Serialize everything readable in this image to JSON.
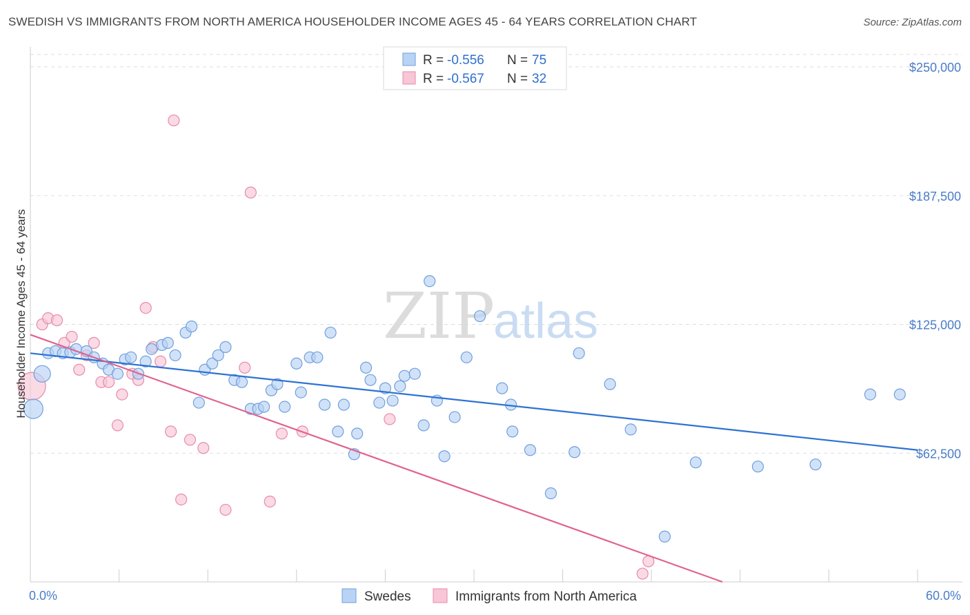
{
  "header": {
    "title": "SWEDISH VS IMMIGRANTS FROM NORTH AMERICA HOUSEHOLDER INCOME AGES 45 - 64 YEARS CORRELATION CHART",
    "source": "Source: ZipAtlas.com"
  },
  "watermark": {
    "zip": "ZIP",
    "atlas": "atlas"
  },
  "colors": {
    "swedes_fill": "#b9d3f5",
    "swedes_stroke": "#6f9fdc",
    "swedes_line": "#2d72d2",
    "imm_fill": "#f8c6d6",
    "imm_stroke": "#e88aaa",
    "imm_line": "#e0628e",
    "grid": "#dddddd",
    "axis_label": "#4a7cc9"
  },
  "legend": {
    "rows": [
      {
        "r_label": "R = ",
        "r_value": "-0.556",
        "n_label": "N = ",
        "n_value": "75"
      },
      {
        "r_label": "R = ",
        "r_value": "-0.567",
        "n_label": "N = ",
        "n_value": "32"
      }
    ]
  },
  "chart_data": {
    "type": "scatter",
    "title": "SWEDISH VS IMMIGRANTS FROM NORTH AMERICA HOUSEHOLDER INCOME AGES 45 - 64 YEARS CORRELATION CHART",
    "xlabel": "",
    "ylabel": "Householder Income Ages 45 - 64 years",
    "xlim": [
      0,
      60
    ],
    "ylim": [
      0,
      250000
    ],
    "x_tick_labels": [
      "0.0%",
      "60.0%"
    ],
    "y_ticks": [
      62500,
      125000,
      187500,
      250000
    ],
    "y_tick_labels": [
      "$62,500",
      "$125,000",
      "$187,500",
      "$250,000"
    ],
    "grid": true,
    "legend_position": "top-center",
    "series": [
      {
        "name": "Swedes",
        "trend": {
          "x": [
            0,
            60
          ],
          "y": [
            111000,
            64000
          ]
        },
        "points": [
          {
            "x": 0.2,
            "y": 84000,
            "s": 14
          },
          {
            "x": 0.8,
            "y": 101000,
            "s": 12
          },
          {
            "x": 1.2,
            "y": 111000
          },
          {
            "x": 1.7,
            "y": 112000
          },
          {
            "x": 2.2,
            "y": 111000
          },
          {
            "x": 2.7,
            "y": 111500
          },
          {
            "x": 3.1,
            "y": 113000
          },
          {
            "x": 3.8,
            "y": 112000
          },
          {
            "x": 4.3,
            "y": 109000
          },
          {
            "x": 4.9,
            "y": 106000
          },
          {
            "x": 5.3,
            "y": 103000
          },
          {
            "x": 5.9,
            "y": 101000
          },
          {
            "x": 6.4,
            "y": 108000
          },
          {
            "x": 6.8,
            "y": 109000
          },
          {
            "x": 7.3,
            "y": 101000
          },
          {
            "x": 7.8,
            "y": 107000
          },
          {
            "x": 8.2,
            "y": 113000
          },
          {
            "x": 8.9,
            "y": 115000
          },
          {
            "x": 9.3,
            "y": 116000
          },
          {
            "x": 9.8,
            "y": 110000
          },
          {
            "x": 10.5,
            "y": 121000
          },
          {
            "x": 10.9,
            "y": 124000
          },
          {
            "x": 11.4,
            "y": 87000
          },
          {
            "x": 11.8,
            "y": 103000
          },
          {
            "x": 12.3,
            "y": 106000
          },
          {
            "x": 12.7,
            "y": 110000
          },
          {
            "x": 13.2,
            "y": 114000
          },
          {
            "x": 13.8,
            "y": 98000
          },
          {
            "x": 14.3,
            "y": 97000
          },
          {
            "x": 14.9,
            "y": 84000
          },
          {
            "x": 15.4,
            "y": 84000
          },
          {
            "x": 15.8,
            "y": 85000
          },
          {
            "x": 16.3,
            "y": 93000
          },
          {
            "x": 16.7,
            "y": 96000
          },
          {
            "x": 17.2,
            "y": 85000
          },
          {
            "x": 18.0,
            "y": 106000
          },
          {
            "x": 18.3,
            "y": 92000
          },
          {
            "x": 18.9,
            "y": 109000
          },
          {
            "x": 19.4,
            "y": 109000
          },
          {
            "x": 19.9,
            "y": 86000
          },
          {
            "x": 20.3,
            "y": 121000
          },
          {
            "x": 20.8,
            "y": 73000
          },
          {
            "x": 21.2,
            "y": 86000
          },
          {
            "x": 21.9,
            "y": 62000
          },
          {
            "x": 22.1,
            "y": 72000
          },
          {
            "x": 22.7,
            "y": 104000
          },
          {
            "x": 23.0,
            "y": 98000
          },
          {
            "x": 23.6,
            "y": 87000
          },
          {
            "x": 24.0,
            "y": 94000
          },
          {
            "x": 24.5,
            "y": 88000
          },
          {
            "x": 25.0,
            "y": 95000
          },
          {
            "x": 25.3,
            "y": 100000
          },
          {
            "x": 26.0,
            "y": 101000
          },
          {
            "x": 26.6,
            "y": 76000
          },
          {
            "x": 27.0,
            "y": 146000
          },
          {
            "x": 27.5,
            "y": 88000
          },
          {
            "x": 28.0,
            "y": 61000
          },
          {
            "x": 28.7,
            "y": 80000
          },
          {
            "x": 29.5,
            "y": 109000
          },
          {
            "x": 30.4,
            "y": 129000
          },
          {
            "x": 31.9,
            "y": 94000
          },
          {
            "x": 32.5,
            "y": 86000
          },
          {
            "x": 32.6,
            "y": 73000
          },
          {
            "x": 33.8,
            "y": 64000
          },
          {
            "x": 35.2,
            "y": 43000
          },
          {
            "x": 36.8,
            "y": 63000
          },
          {
            "x": 37.1,
            "y": 111000
          },
          {
            "x": 39.2,
            "y": 96000
          },
          {
            "x": 40.6,
            "y": 74000
          },
          {
            "x": 42.9,
            "y": 22000
          },
          {
            "x": 45.0,
            "y": 58000
          },
          {
            "x": 49.2,
            "y": 56000
          },
          {
            "x": 53.1,
            "y": 57000
          },
          {
            "x": 56.8,
            "y": 91000
          },
          {
            "x": 58.8,
            "y": 91000
          }
        ]
      },
      {
        "name": "Immigrants from North America",
        "trend": {
          "x": [
            0,
            46.8
          ],
          "y": [
            120000,
            0
          ]
        },
        "points": [
          {
            "x": 0.1,
            "y": 95000,
            "s": 20
          },
          {
            "x": 0.8,
            "y": 125000
          },
          {
            "x": 1.2,
            "y": 128000
          },
          {
            "x": 1.8,
            "y": 127000
          },
          {
            "x": 2.3,
            "y": 116000
          },
          {
            "x": 2.8,
            "y": 119000
          },
          {
            "x": 3.3,
            "y": 103000
          },
          {
            "x": 3.8,
            "y": 110000
          },
          {
            "x": 4.3,
            "y": 116000
          },
          {
            "x": 4.8,
            "y": 97000
          },
          {
            "x": 5.3,
            "y": 97000
          },
          {
            "x": 5.9,
            "y": 76000
          },
          {
            "x": 6.2,
            "y": 91000
          },
          {
            "x": 6.9,
            "y": 101000
          },
          {
            "x": 7.3,
            "y": 98000
          },
          {
            "x": 7.8,
            "y": 133000
          },
          {
            "x": 8.3,
            "y": 114000
          },
          {
            "x": 8.8,
            "y": 107000
          },
          {
            "x": 9.5,
            "y": 73000
          },
          {
            "x": 9.7,
            "y": 224000
          },
          {
            "x": 10.2,
            "y": 40000
          },
          {
            "x": 10.8,
            "y": 69000
          },
          {
            "x": 11.7,
            "y": 65000
          },
          {
            "x": 13.2,
            "y": 35000
          },
          {
            "x": 14.5,
            "y": 104000
          },
          {
            "x": 14.9,
            "y": 189000
          },
          {
            "x": 16.2,
            "y": 39000
          },
          {
            "x": 17.0,
            "y": 72000
          },
          {
            "x": 18.4,
            "y": 73000
          },
          {
            "x": 24.3,
            "y": 79000
          },
          {
            "x": 41.4,
            "y": 4000
          },
          {
            "x": 41.8,
            "y": 10000
          }
        ]
      }
    ]
  }
}
